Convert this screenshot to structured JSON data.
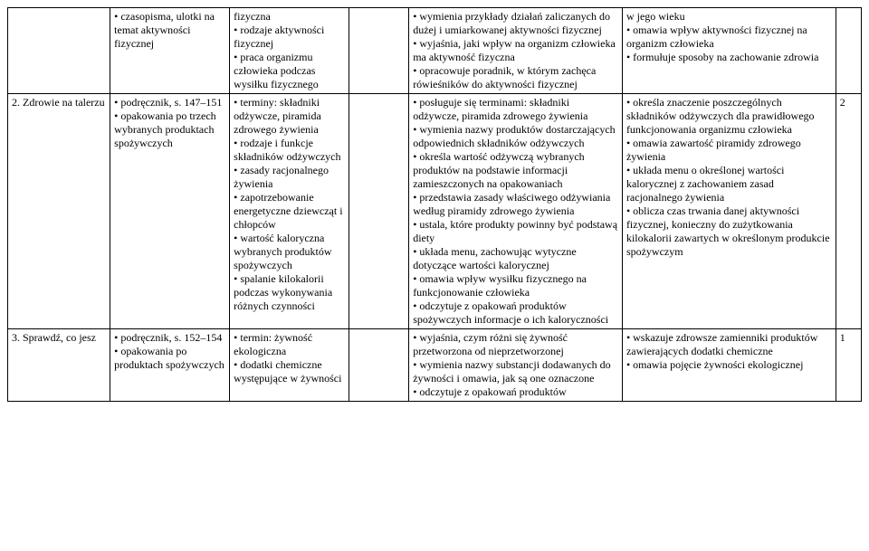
{
  "rows": [
    {
      "c0": "",
      "c1": "• czasopisma, ulotki na temat aktywności fizycznej",
      "c2": "fizyczna\n• rodzaje aktywności fizycznej\n• praca organizmu człowieka podczas wysiłku fizycznego",
      "c3": "",
      "c4": "• wymienia przykłady działań zaliczanych do dużej i umiarkowanej aktywności fizycznej\n• wyjaśnia, jaki wpływ na organizm człowieka ma aktywność fizyczna\n• opracowuje poradnik, w którym zachęca rówieśników do aktywności fizycznej",
      "c5": "w jego wieku\n• omawia wpływ aktywności fizycznej na organizm człowieka\n• formułuje sposoby na zachowanie zdrowia",
      "c6": ""
    },
    {
      "c0": "2. Zdrowie na talerzu",
      "c1": "• podręcznik, s. 147–151\n• opakowania po trzech wybranych produktach spożywczych",
      "c2": "• terminy: składniki odżywcze, piramida zdrowego żywienia\n• rodzaje i funkcje składników odżywczych\n• zasady racjonalnego żywienia\n• zapotrzebowanie energetyczne dziewcząt i chłopców\n• wartość kaloryczna wybranych produktów spożywczych\n• spalanie kilokalorii podczas wykonywania różnych czynności",
      "c3": "",
      "c4": "• posługuje się terminami: składniki odżywcze, piramida zdrowego żywienia\n• wymienia nazwy produktów dostarczających odpowiednich składników odżywczych\n• określa wartość odżywczą wybranych produktów na podstawie informacji zamieszczonych na opakowaniach\n• przedstawia zasady właściwego odżywiania według piramidy zdrowego żywienia\n• ustala, które produkty powinny być podstawą diety\n• układa menu, zachowując wytyczne dotyczące wartości kalorycznej\n• omawia wpływ wysiłku fizycznego na funkcjonowanie człowieka\n• odczytuje z opakowań produktów spożywczych informacje o ich kaloryczności",
      "c5": "• określa znaczenie poszczególnych składników odżywczych dla prawidłowego funkcjonowania organizmu człowieka\n• omawia zawartość piramidy zdrowego żywienia\n• układa menu o określonej wartości kalorycznej z zachowaniem zasad racjonalnego żywienia\n• oblicza czas trwania danej aktywności fizycznej, konieczny do zużytkowania kilokalorii zawartych w określonym produkcie spożywczym",
      "c6": "2"
    },
    {
      "c0": "3. Sprawdź, co jesz",
      "c1": "• podręcznik, s. 152–154\n• opakowania po produktach spożywczych",
      "c2": "• termin: żywność ekologiczna\n• dodatki chemiczne występujące w żywności",
      "c3": "",
      "c4": "• wyjaśnia, czym różni się żywność przetworzona od nieprzetworzonej\n• wymienia nazwy substancji dodawanych do żywności i omawia, jak są one oznaczone\n• odczytuje z opakowań produktów",
      "c5": "• wskazuje zdrowsze zamienniki produktów zawierających dodatki chemiczne\n• omawia pojęcie żywności ekologicznej",
      "c6": "1"
    }
  ]
}
